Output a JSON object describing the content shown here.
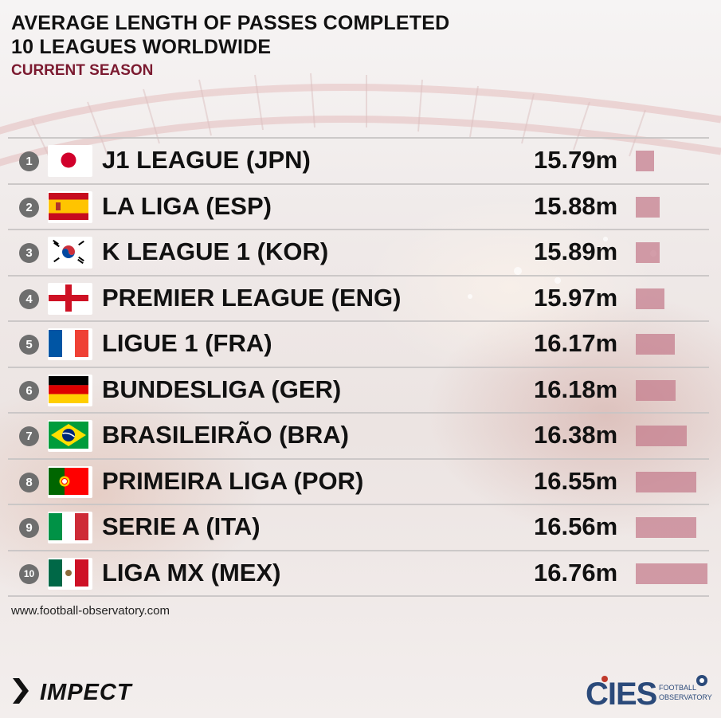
{
  "header": {
    "title_line1": "AVERAGE LENGTH OF PASSES COMPLETED",
    "title_line2": "10 LEAGUES WORLDWIDE",
    "subtitle": "CURRENT SEASON"
  },
  "chart_data": {
    "type": "bar",
    "orientation": "horizontal",
    "title": "AVERAGE LENGTH OF PASSES COMPLETED 10 LEAGUES WORLDWIDE",
    "subtitle": "CURRENT SEASON",
    "unit": "m",
    "bar_color": "#c47a8a",
    "categories": [
      "J1 LEAGUE (JPN)",
      "LA LIGA (ESP)",
      "K LEAGUE 1 (KOR)",
      "PREMIER LEAGUE (ENG)",
      "LIGUE 1 (FRA)",
      "BUNDESLIGA (GER)",
      "BRASILEIRÃO (BRA)",
      "PRIMEIRA LIGA (POR)",
      "SERIE A (ITA)",
      "LIGA MX (MEX)"
    ],
    "values": [
      15.79,
      15.88,
      15.89,
      15.97,
      16.17,
      16.18,
      16.38,
      16.55,
      16.56,
      16.76
    ],
    "rows": [
      {
        "rank": "1",
        "league": "J1 LEAGUE (JPN)",
        "value_label": "15.79m",
        "value": 15.79,
        "flag": "japan-flag"
      },
      {
        "rank": "2",
        "league": "LA LIGA (ESP)",
        "value_label": "15.88m",
        "value": 15.88,
        "flag": "spain-flag"
      },
      {
        "rank": "3",
        "league": "K LEAGUE 1 (KOR)",
        "value_label": "15.89m",
        "value": 15.89,
        "flag": "korea-flag"
      },
      {
        "rank": "4",
        "league": "PREMIER LEAGUE (ENG)",
        "value_label": "15.97m",
        "value": 15.97,
        "flag": "england-flag"
      },
      {
        "rank": "5",
        "league": "LIGUE 1 (FRA)",
        "value_label": "16.17m",
        "value": 16.17,
        "flag": "france-flag"
      },
      {
        "rank": "6",
        "league": "BUNDESLIGA (GER)",
        "value_label": "16.18m",
        "value": 16.18,
        "flag": "germany-flag"
      },
      {
        "rank": "7",
        "league": "BRASILEIRÃO (BRA)",
        "value_label": "16.38m",
        "value": 16.38,
        "flag": "brazil-flag"
      },
      {
        "rank": "8",
        "league": "PRIMEIRA LIGA (POR)",
        "value_label": "16.55m",
        "value": 16.55,
        "flag": "portugal-flag"
      },
      {
        "rank": "9",
        "league": "SERIE A (ITA)",
        "value_label": "16.56m",
        "value": 16.56,
        "flag": "italy-flag"
      },
      {
        "rank": "10",
        "league": "LIGA MX (MEX)",
        "value_label": "16.76m",
        "value": 16.76,
        "flag": "mexico-flag"
      }
    ]
  },
  "footer": {
    "source": "www.football-observatory.com",
    "impect_logo": "IMPECT",
    "cies_logo": "CIES",
    "cies_tagline_1": "FOOTBALL",
    "cies_tagline_2": "OBSERVATORY"
  }
}
